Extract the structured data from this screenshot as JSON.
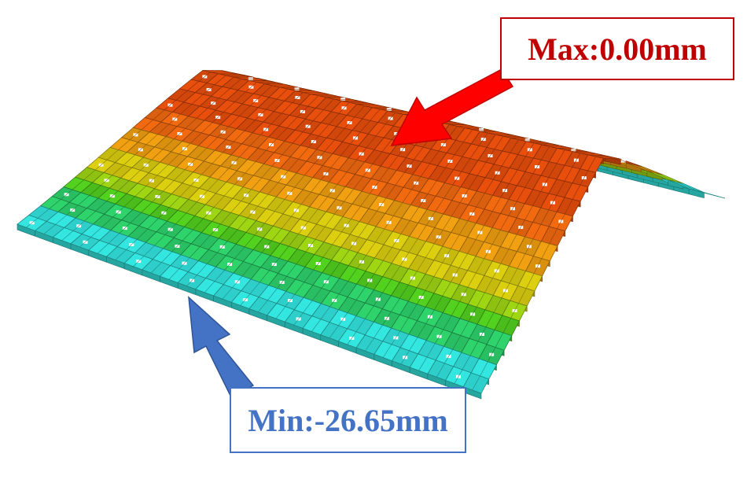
{
  "annotations": {
    "max_label": "Max:0.00mm",
    "min_label": "Min:-26.65mm"
  },
  "colors": {
    "max_accent": "#c00000",
    "max_arrow": "#ff0000",
    "min_accent": "#4472c4",
    "colormap": [
      "#33e6e0",
      "#2ed36c",
      "#52d11f",
      "#9ed614",
      "#dccf10",
      "#f0a010",
      "#f26a10",
      "#e84e0c"
    ]
  }
}
